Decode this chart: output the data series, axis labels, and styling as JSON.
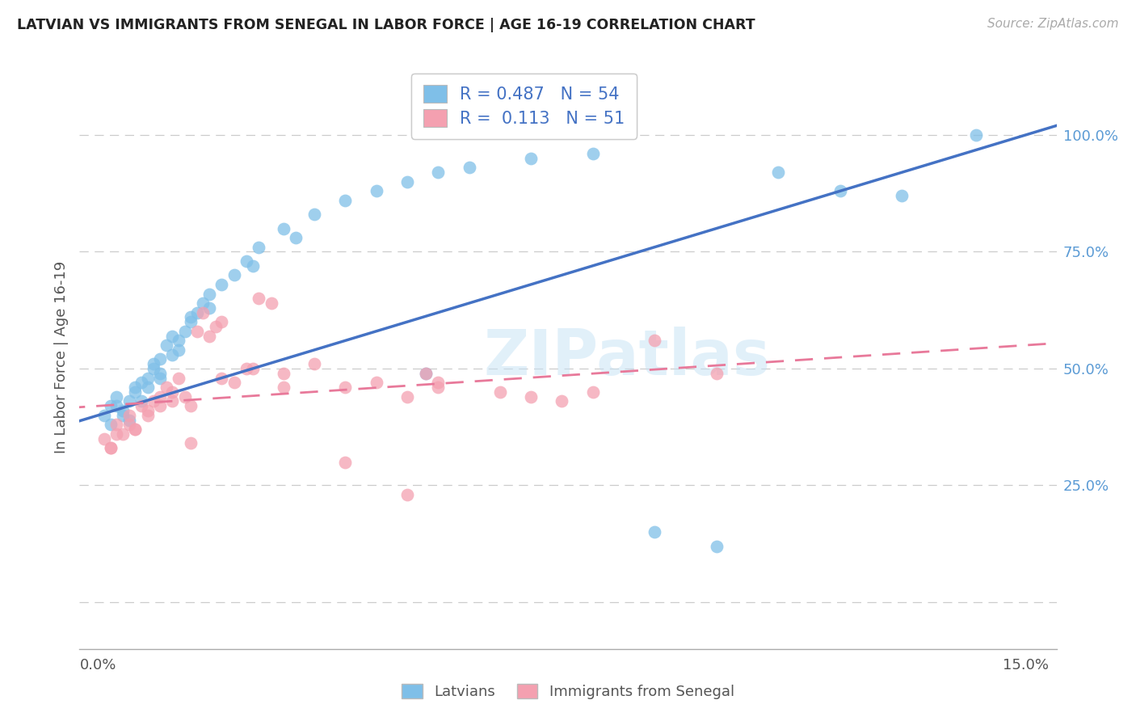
{
  "title": "LATVIAN VS IMMIGRANTS FROM SENEGAL IN LABOR FORCE | AGE 16-19 CORRELATION CHART",
  "source": "Source: ZipAtlas.com",
  "ylabel": "In Labor Force | Age 16-19",
  "legend_r_latvian": "0.487",
  "legend_n_latvian": "54",
  "legend_r_senegal": "0.113",
  "legend_n_senegal": "51",
  "blue_color": "#7fbfe8",
  "pink_color": "#f4a0b0",
  "trend_blue": "#4472c4",
  "trend_pink": "#e8799a",
  "latvian_x": [
    0.1,
    0.2,
    0.2,
    0.3,
    0.4,
    0.5,
    0.5,
    0.6,
    0.7,
    0.7,
    0.8,
    0.8,
    0.9,
    1.0,
    1.0,
    1.1,
    1.2,
    1.2,
    1.3,
    1.3,
    1.4,
    1.5,
    1.6,
    1.7,
    1.8,
    2.0,
    2.2,
    2.4,
    2.6,
    3.0,
    3.5,
    4.0,
    4.5,
    5.0,
    5.5,
    6.0,
    7.0,
    8.0,
    9.0,
    10.0,
    11.0,
    12.0,
    13.0,
    1.5,
    1.8,
    2.5,
    3.2,
    1.0,
    0.6,
    0.3,
    0.4,
    0.9,
    14.2,
    5.3
  ],
  "latvian_y": [
    40,
    42,
    38,
    44,
    41,
    43,
    39,
    45,
    47,
    43,
    46,
    48,
    50,
    52,
    48,
    55,
    53,
    57,
    56,
    54,
    58,
    60,
    62,
    64,
    66,
    68,
    70,
    73,
    76,
    80,
    83,
    86,
    88,
    90,
    92,
    93,
    95,
    96,
    15,
    12,
    92,
    88,
    87,
    61,
    63,
    72,
    78,
    49,
    46,
    42,
    40,
    51,
    100,
    49
  ],
  "senegal_x": [
    0.1,
    0.2,
    0.3,
    0.4,
    0.5,
    0.6,
    0.7,
    0.8,
    0.9,
    1.0,
    1.1,
    1.2,
    1.3,
    1.4,
    1.5,
    1.6,
    1.7,
    1.8,
    1.9,
    2.0,
    2.2,
    2.4,
    2.6,
    2.8,
    3.0,
    3.5,
    4.0,
    4.5,
    5.0,
    5.5,
    0.3,
    0.5,
    0.8,
    1.0,
    1.2,
    1.5,
    2.0,
    2.5,
    3.0,
    4.0,
    5.0,
    5.5,
    6.5,
    7.0,
    7.5,
    8.0,
    9.0,
    10.0,
    0.2,
    0.6,
    5.3
  ],
  "senegal_y": [
    35,
    33,
    38,
    36,
    40,
    37,
    42,
    41,
    43,
    44,
    46,
    45,
    48,
    44,
    42,
    58,
    62,
    57,
    59,
    60,
    47,
    50,
    65,
    64,
    49,
    51,
    46,
    47,
    44,
    46,
    36,
    38,
    40,
    42,
    43,
    34,
    48,
    50,
    46,
    30,
    23,
    47,
    45,
    44,
    43,
    45,
    56,
    49,
    33,
    37,
    49
  ]
}
